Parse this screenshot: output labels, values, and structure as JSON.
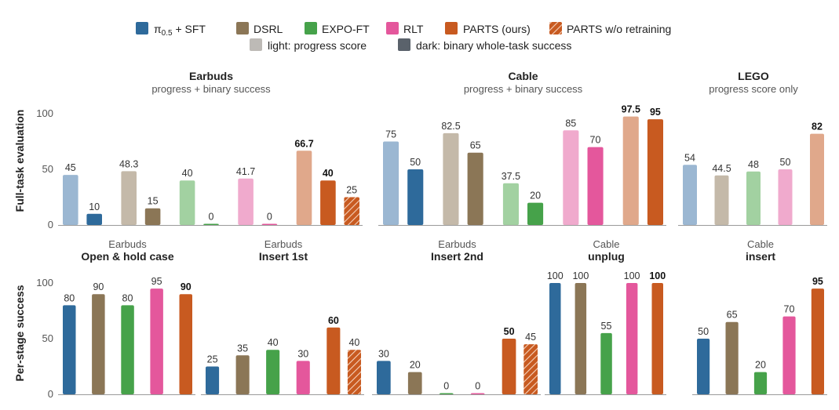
{
  "colors": {
    "pi05_sft": "#2e6a9b",
    "dsrl": "#8b7656",
    "expo_ft": "#46a24a",
    "rlt": "#e4579c",
    "parts": "#c85a20",
    "pi05_sft_light": "#9bb7d2",
    "dsrl_light": "#c4b9a9",
    "expo_ft_light": "#a2d1a1",
    "rlt_light": "#f0aacd",
    "parts_light": "#e0a88b",
    "legend_light": "#bdbab6",
    "legend_dark": "#5a626b"
  },
  "legend": {
    "items": [
      {
        "key": "pi05_sft",
        "label_main": "π",
        "label_sub": "0.5",
        "label_rest": " + SFT"
      },
      {
        "key": "dsrl",
        "label": "DSRL"
      },
      {
        "key": "expo_ft",
        "label": "EXPO-FT"
      },
      {
        "key": "rlt",
        "label": "RLT"
      },
      {
        "key": "parts",
        "label": "PARTS (ours)"
      },
      {
        "key": "parts_noretrain",
        "label": "PARTS w/o retraining"
      }
    ],
    "row2": [
      {
        "key": "light",
        "label": "light: progress score"
      },
      {
        "key": "dark",
        "label": "dark: binary whole-task success"
      }
    ]
  },
  "y_labels": {
    "top": "Full-task evaluation",
    "bottom": "Per-stage success"
  },
  "chart_data": [
    {
      "type": "bar",
      "row": "top",
      "title": "Earbuds",
      "subtitle": "progress + binary success",
      "ylim": [
        0,
        100
      ],
      "yticks": [
        0,
        50,
        100
      ],
      "grid": false,
      "bars": [
        {
          "method": "pi05_sft",
          "style": "light",
          "value": 45,
          "label": "45"
        },
        {
          "method": "pi05_sft",
          "style": "dark",
          "value": 10,
          "label": "10"
        },
        {
          "method": "dsrl",
          "style": "light",
          "value": 48.3,
          "label": "48.3"
        },
        {
          "method": "dsrl",
          "style": "dark",
          "value": 15,
          "label": "15"
        },
        {
          "method": "expo_ft",
          "style": "light",
          "value": 40,
          "label": "40"
        },
        {
          "method": "expo_ft",
          "style": "dark",
          "value": 0,
          "label": "0"
        },
        {
          "method": "rlt",
          "style": "light",
          "value": 41.7,
          "label": "41.7"
        },
        {
          "method": "rlt",
          "style": "dark",
          "value": 0,
          "label": "0"
        },
        {
          "method": "parts",
          "style": "light",
          "value": 66.7,
          "label": "66.7",
          "bold": true
        },
        {
          "method": "parts",
          "style": "dark",
          "value": 40,
          "label": "40",
          "bold": true
        },
        {
          "method": "parts_noretrain",
          "style": "hatch",
          "value": 25,
          "label": "25"
        }
      ]
    },
    {
      "type": "bar",
      "row": "top",
      "title": "Cable",
      "subtitle": "progress + binary success",
      "ylim": [
        0,
        100
      ],
      "yticks": [
        0,
        50,
        100
      ],
      "grid": false,
      "bars": [
        {
          "method": "pi05_sft",
          "style": "light",
          "value": 75,
          "label": "75"
        },
        {
          "method": "pi05_sft",
          "style": "dark",
          "value": 50,
          "label": "50"
        },
        {
          "method": "dsrl",
          "style": "light",
          "value": 82.5,
          "label": "82.5"
        },
        {
          "method": "dsrl",
          "style": "dark",
          "value": 65,
          "label": "65"
        },
        {
          "method": "expo_ft",
          "style": "light",
          "value": 37.5,
          "label": "37.5"
        },
        {
          "method": "expo_ft",
          "style": "dark",
          "value": 20,
          "label": "20"
        },
        {
          "method": "rlt",
          "style": "light",
          "value": 85,
          "label": "85"
        },
        {
          "method": "rlt",
          "style": "dark",
          "value": 70,
          "label": "70"
        },
        {
          "method": "parts",
          "style": "light",
          "value": 97.5,
          "label": "97.5",
          "bold": true
        },
        {
          "method": "parts",
          "style": "dark",
          "value": 95,
          "label": "95",
          "bold": true
        }
      ]
    },
    {
      "type": "bar",
      "row": "top",
      "title": "LEGO",
      "subtitle": "progress score only",
      "ylim": [
        0,
        100
      ],
      "yticks": [
        0,
        50,
        100
      ],
      "grid": false,
      "bars": [
        {
          "method": "pi05_sft",
          "style": "light",
          "value": 54,
          "label": "54"
        },
        {
          "method": "dsrl",
          "style": "light",
          "value": 44.5,
          "label": "44.5"
        },
        {
          "method": "expo_ft",
          "style": "light",
          "value": 48,
          "label": "48"
        },
        {
          "method": "rlt",
          "style": "light",
          "value": 50,
          "label": "50"
        },
        {
          "method": "parts",
          "style": "light",
          "value": 82,
          "label": "82",
          "bold": true
        }
      ]
    },
    {
      "type": "bar",
      "row": "bottom",
      "title": "Open & hold case",
      "subtitle": "Earbuds",
      "ylim": [
        0,
        100
      ],
      "yticks": [
        0,
        50,
        100
      ],
      "grid": false,
      "bars": [
        {
          "method": "pi05_sft",
          "style": "dark",
          "value": 80,
          "label": "80"
        },
        {
          "method": "dsrl",
          "style": "dark",
          "value": 90,
          "label": "90"
        },
        {
          "method": "expo_ft",
          "style": "dark",
          "value": 80,
          "label": "80"
        },
        {
          "method": "rlt",
          "style": "dark",
          "value": 95,
          "label": "95"
        },
        {
          "method": "parts",
          "style": "dark",
          "value": 90,
          "label": "90",
          "bold": true
        }
      ]
    },
    {
      "type": "bar",
      "row": "bottom",
      "title": "Insert 1st",
      "subtitle": "Earbuds",
      "ylim": [
        0,
        100
      ],
      "grid": false,
      "bars": [
        {
          "method": "pi05_sft",
          "style": "dark",
          "value": 25,
          "label": "25"
        },
        {
          "method": "dsrl",
          "style": "dark",
          "value": 35,
          "label": "35"
        },
        {
          "method": "expo_ft",
          "style": "dark",
          "value": 40,
          "label": "40"
        },
        {
          "method": "rlt",
          "style": "dark",
          "value": 30,
          "label": "30"
        },
        {
          "method": "parts",
          "style": "dark",
          "value": 60,
          "label": "60",
          "bold": true
        },
        {
          "method": "parts_noretrain",
          "style": "hatch",
          "value": 40,
          "label": "40"
        }
      ]
    },
    {
      "type": "bar",
      "row": "bottom",
      "title": "Insert 2nd",
      "subtitle": "Earbuds",
      "ylim": [
        0,
        100
      ],
      "grid": false,
      "bars": [
        {
          "method": "pi05_sft",
          "style": "dark",
          "value": 30,
          "label": "30"
        },
        {
          "method": "dsrl",
          "style": "dark",
          "value": 20,
          "label": "20"
        },
        {
          "method": "expo_ft",
          "style": "dark",
          "value": 0,
          "label": "0"
        },
        {
          "method": "rlt",
          "style": "dark",
          "value": 0,
          "label": "0"
        },
        {
          "method": "parts",
          "style": "dark",
          "value": 50,
          "label": "50",
          "bold": true
        },
        {
          "method": "parts_noretrain",
          "style": "hatch",
          "value": 45,
          "label": "45"
        }
      ]
    },
    {
      "type": "bar",
      "row": "bottom",
      "title": "unplug",
      "subtitle": "Cable",
      "ylim": [
        0,
        100
      ],
      "grid": false,
      "bars": [
        {
          "method": "pi05_sft",
          "style": "dark",
          "value": 100,
          "label": "100"
        },
        {
          "method": "dsrl",
          "style": "dark",
          "value": 100,
          "label": "100"
        },
        {
          "method": "expo_ft",
          "style": "dark",
          "value": 55,
          "label": "55"
        },
        {
          "method": "rlt",
          "style": "dark",
          "value": 100,
          "label": "100"
        },
        {
          "method": "parts",
          "style": "dark",
          "value": 100,
          "label": "100",
          "bold": true
        }
      ]
    },
    {
      "type": "bar",
      "row": "bottom",
      "title": "insert",
      "subtitle": "Cable",
      "ylim": [
        0,
        100
      ],
      "grid": false,
      "bars": [
        {
          "method": "pi05_sft",
          "style": "dark",
          "value": 50,
          "label": "50"
        },
        {
          "method": "dsrl",
          "style": "dark",
          "value": 65,
          "label": "65"
        },
        {
          "method": "expo_ft",
          "style": "dark",
          "value": 20,
          "label": "20"
        },
        {
          "method": "rlt",
          "style": "dark",
          "value": 70,
          "label": "70"
        },
        {
          "method": "parts",
          "style": "dark",
          "value": 95,
          "label": "95",
          "bold": true
        }
      ]
    }
  ]
}
